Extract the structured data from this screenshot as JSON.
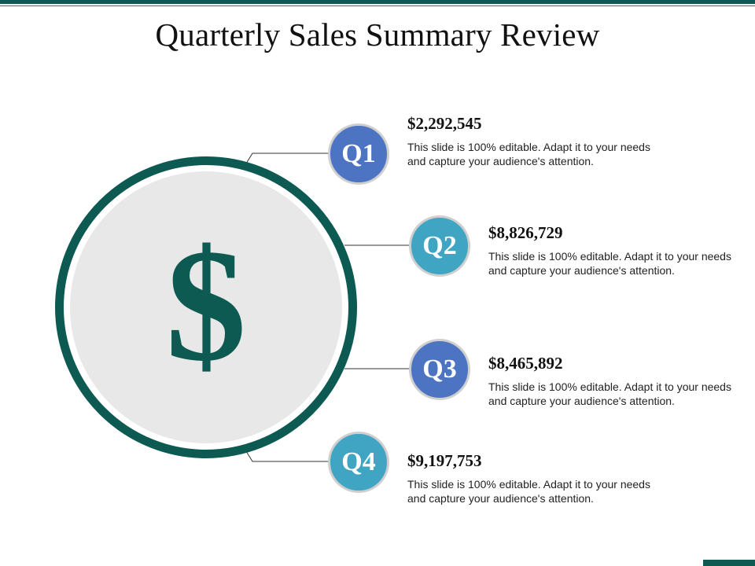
{
  "title": "Quarterly Sales Summary Review",
  "center_symbol": "$",
  "colors": {
    "primary": "#0c5a52",
    "badge_blue": "#4c74c2",
    "badge_teal": "#3fa5c2",
    "inner_fill": "#e8e8e8"
  },
  "quarters": [
    {
      "label": "Q1",
      "amount": "$2,292,545",
      "description": "This slide is 100% editable. Adapt it to your needs and capture your audience's attention."
    },
    {
      "label": "Q2",
      "amount": "$8,826,729",
      "description": "This slide is 100% editable. Adapt it to your needs and capture your audience's attention."
    },
    {
      "label": "Q3",
      "amount": "$8,465,892",
      "description": "This slide is 100% editable. Adapt it to your needs and capture your audience's attention."
    },
    {
      "label": "Q4",
      "amount": "$9,197,753",
      "description": "This slide is 100% editable. Adapt it to your needs and capture your audience's attention."
    }
  ]
}
